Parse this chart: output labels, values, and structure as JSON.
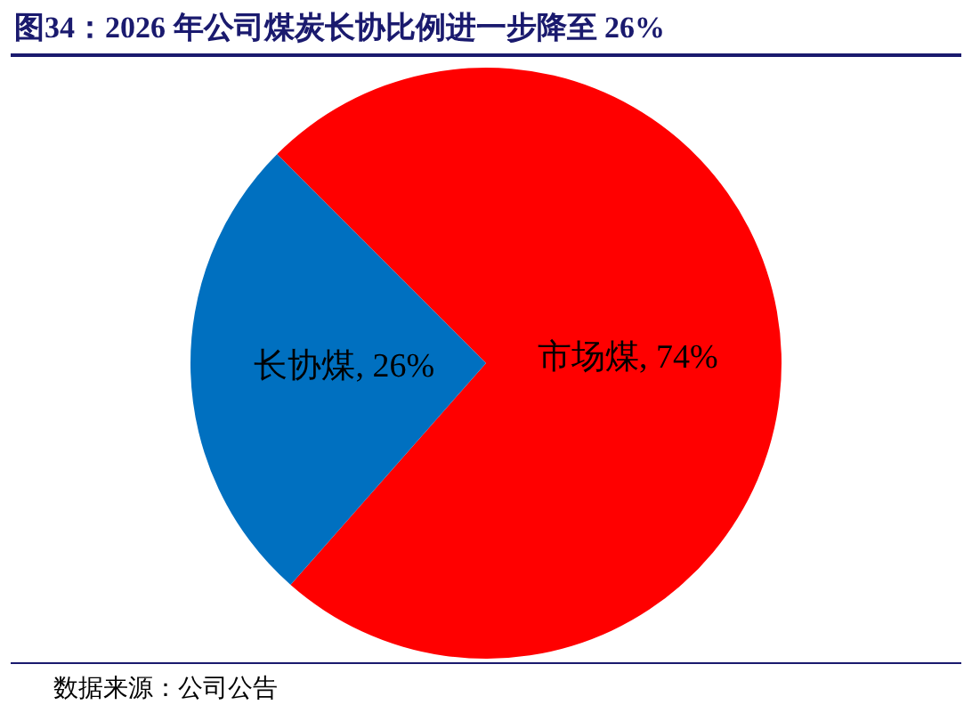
{
  "chart_data": {
    "type": "pie",
    "title": "图34：2026 年公司煤炭长协比例进一步降至 26%",
    "categories": [
      "市场煤",
      "长协煤"
    ],
    "values": [
      74,
      26
    ],
    "colors": [
      "#ff0000",
      "#0070c0"
    ],
    "value_labels": [
      ", 74%",
      ", 26%"
    ],
    "annotations": [
      "数据来源：公司公告"
    ]
  }
}
